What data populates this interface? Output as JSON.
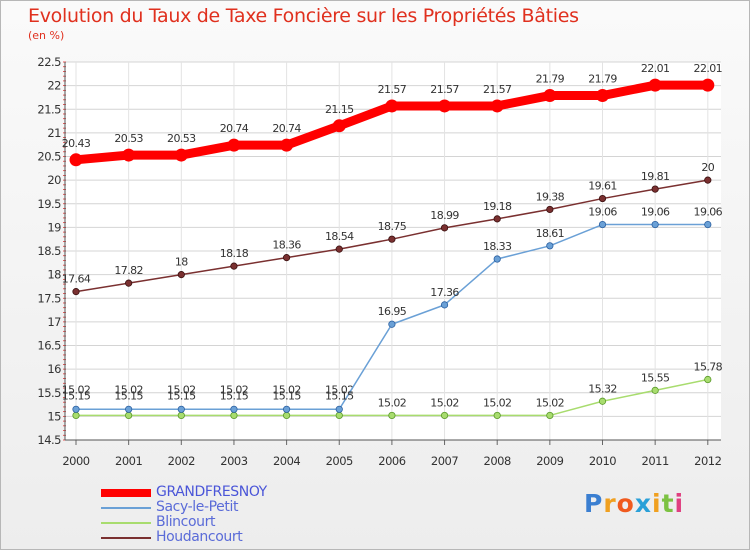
{
  "title": "Evolution du Taux de Taxe Foncière sur les Propriétés Bâties",
  "unit": "(en %)",
  "brand": {
    "letters": [
      "P",
      "r",
      "o",
      "x",
      "i",
      "t",
      "i"
    ],
    "colors": [
      "#3b7fd1",
      "#f0a020",
      "#f05a1e",
      "#2aa0d8",
      "#f0a020",
      "#7cc242",
      "#e04080"
    ]
  },
  "chart_data": {
    "type": "line",
    "x": [
      "2000",
      "2001",
      "2002",
      "2003",
      "2004",
      "2005",
      "2006",
      "2007",
      "2008",
      "2009",
      "2010",
      "2011",
      "2012"
    ],
    "ylim": [
      14.5,
      22.5
    ],
    "yticks": [
      "14.5",
      "15",
      "15.5",
      "16",
      "16.5",
      "17",
      "17.5",
      "18",
      "18.5",
      "19",
      "19.5",
      "20",
      "20.5",
      "21",
      "21.5",
      "22",
      "22.5"
    ],
    "grid": true,
    "legend_position": "bottom-left",
    "series": [
      {
        "name": "GRANDFRESNOY",
        "color": "#ff0000",
        "values": [
          20.43,
          20.53,
          20.53,
          20.74,
          20.74,
          21.15,
          21.57,
          21.57,
          21.57,
          21.79,
          21.79,
          22.01,
          22.01
        ],
        "labels": [
          "20.43",
          "20.53",
          "20.53",
          "20.74",
          "20.74",
          "21.15",
          "21.57",
          "21.57",
          "21.57",
          "21.79",
          "21.79",
          "22.01",
          "22.01"
        ]
      },
      {
        "name": "Sacy-le-Petit",
        "color": "#6aa0d6",
        "values": [
          15.15,
          15.15,
          15.15,
          15.15,
          15.15,
          15.15,
          16.95,
          17.36,
          18.33,
          18.61,
          19.06,
          19.06,
          19.06
        ],
        "labels": [
          "15.15",
          "15.15",
          "15.15",
          "15.15",
          "15.15",
          "15.15",
          "16.95",
          "17.36",
          "18.33",
          "18.61",
          "19.06",
          "19.06",
          "19.06"
        ]
      },
      {
        "name": "Blincourt",
        "color": "#a8dc6e",
        "values": [
          15.02,
          15.02,
          15.02,
          15.02,
          15.02,
          15.02,
          15.02,
          15.02,
          15.02,
          15.02,
          15.32,
          15.55,
          15.78
        ],
        "labels": [
          "15.02",
          "15.02",
          "15.02",
          "15.02",
          "15.02",
          "15.02",
          "15.02",
          "15.02",
          "15.02",
          "15.02",
          "15.32",
          "15.55",
          "15.78"
        ]
      },
      {
        "name": "Houdancourt",
        "color": "#7a3030",
        "values": [
          17.64,
          17.82,
          18.0,
          18.18,
          18.36,
          18.54,
          18.75,
          18.99,
          19.18,
          19.38,
          19.61,
          19.81,
          20.0
        ],
        "labels": [
          "17.64",
          "17.82",
          "18",
          "18.18",
          "18.36",
          "18.54",
          "18.75",
          "18.99",
          "19.18",
          "19.38",
          "19.61",
          "19.81",
          "20"
        ]
      }
    ]
  }
}
